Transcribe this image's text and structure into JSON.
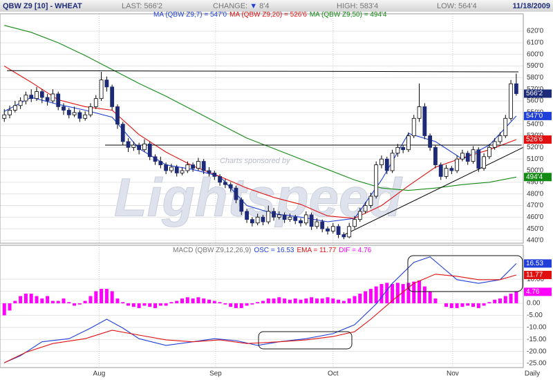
{
  "header": {
    "symbol": "QBW Z9 [10] - WHEAT",
    "date": "11/18/2009",
    "stats": [
      {
        "label": "LAST:",
        "value": "566'2"
      },
      {
        "label": "CHANGE:",
        "arrow": "▼",
        "value": "8'4"
      },
      {
        "label": "HIGH:",
        "value": "583'4"
      },
      {
        "label": "LOW:",
        "value": "564'4"
      }
    ]
  },
  "chart_data": [
    {
      "type": "candlestick",
      "ohlc": [
        [
          545,
          553,
          542,
          548
        ],
        [
          548,
          556,
          545,
          552
        ],
        [
          552,
          560,
          550,
          556
        ],
        [
          556,
          563,
          553,
          560
        ],
        [
          560,
          568,
          557,
          565
        ],
        [
          565,
          570,
          559,
          562
        ],
        [
          562,
          572,
          560,
          568
        ],
        [
          568,
          570,
          558,
          563
        ],
        [
          563,
          566,
          556,
          560
        ],
        [
          560,
          570,
          558,
          566
        ],
        [
          566,
          568,
          552,
          555
        ],
        [
          555,
          558,
          548,
          552
        ],
        [
          552,
          554,
          545,
          548
        ],
        [
          548,
          555,
          546,
          550
        ],
        [
          550,
          552,
          542,
          545
        ],
        [
          545,
          551,
          543,
          548
        ],
        [
          548,
          558,
          546,
          555
        ],
        [
          555,
          565,
          553,
          562
        ],
        [
          562,
          585,
          560,
          578
        ],
        [
          578,
          581,
          568,
          572
        ],
        [
          572,
          574,
          552,
          555
        ],
        [
          555,
          557,
          536,
          540
        ],
        [
          540,
          542,
          522,
          525
        ],
        [
          525,
          528,
          516,
          520
        ],
        [
          520,
          525,
          517,
          522
        ],
        [
          522,
          524,
          514,
          518
        ],
        [
          518,
          527,
          516,
          523
        ],
        [
          523,
          525,
          509,
          512
        ],
        [
          512,
          514,
          505,
          508
        ],
        [
          508,
          512,
          502,
          505
        ],
        [
          505,
          507,
          497,
          500
        ],
        [
          500,
          506,
          498,
          503
        ],
        [
          503,
          505,
          495,
          498
        ],
        [
          498,
          503,
          496,
          500
        ],
        [
          500,
          508,
          498,
          505
        ],
        [
          505,
          507,
          499,
          502
        ],
        [
          502,
          511,
          500,
          508
        ],
        [
          508,
          510,
          497,
          500
        ],
        [
          500,
          503,
          495,
          498
        ],
        [
          498,
          500,
          492,
          495
        ],
        [
          495,
          497,
          487,
          490
        ],
        [
          490,
          493,
          485,
          488
        ],
        [
          488,
          490,
          482,
          485
        ],
        [
          485,
          487,
          472,
          475
        ],
        [
          475,
          477,
          462,
          465
        ],
        [
          465,
          467,
          455,
          458
        ],
        [
          458,
          460,
          452,
          455
        ],
        [
          455,
          463,
          453,
          460
        ],
        [
          460,
          462,
          453,
          456
        ],
        [
          456,
          470,
          454,
          465
        ],
        [
          465,
          468,
          457,
          460
        ],
        [
          460,
          465,
          458,
          462
        ],
        [
          462,
          464,
          455,
          458
        ],
        [
          458,
          463,
          456,
          460
        ],
        [
          460,
          462,
          454,
          457
        ],
        [
          457,
          459,
          452,
          455
        ],
        [
          455,
          465,
          453,
          462
        ],
        [
          462,
          464,
          449,
          452
        ],
        [
          452,
          459,
          450,
          456
        ],
        [
          456,
          458,
          447,
          450
        ],
        [
          450,
          452,
          445,
          448
        ],
        [
          448,
          455,
          446,
          452
        ],
        [
          452,
          454,
          442,
          445
        ],
        [
          445,
          447,
          441,
          443
        ],
        [
          443,
          455,
          442,
          452
        ],
        [
          452,
          461,
          450,
          458
        ],
        [
          458,
          468,
          456,
          465
        ],
        [
          465,
          473,
          463,
          470
        ],
        [
          470,
          481,
          468,
          478
        ],
        [
          478,
          508,
          476,
          505
        ],
        [
          505,
          513,
          502,
          510
        ],
        [
          510,
          512,
          497,
          500
        ],
        [
          500,
          518,
          498,
          515
        ],
        [
          515,
          523,
          512,
          520
        ],
        [
          520,
          522,
          515,
          518
        ],
        [
          518,
          533,
          516,
          530
        ],
        [
          530,
          548,
          528,
          545
        ],
        [
          545,
          575,
          542,
          555
        ],
        [
          555,
          558,
          527,
          530
        ],
        [
          530,
          532,
          517,
          520
        ],
        [
          520,
          522,
          502,
          505
        ],
        [
          505,
          507,
          492,
          495
        ],
        [
          495,
          505,
          493,
          502
        ],
        [
          502,
          504,
          497,
          500
        ],
        [
          500,
          513,
          498,
          510
        ],
        [
          510,
          518,
          508,
          515
        ],
        [
          515,
          517,
          505,
          508
        ],
        [
          508,
          521,
          506,
          518
        ],
        [
          518,
          520,
          499,
          502
        ],
        [
          502,
          515,
          500,
          512
        ],
        [
          512,
          523,
          510,
          520
        ],
        [
          520,
          528,
          518,
          525
        ],
        [
          525,
          533,
          523,
          530
        ],
        [
          530,
          548,
          528,
          545
        ],
        [
          545,
          578,
          543,
          574.75
        ],
        [
          574.75,
          583.5,
          564.5,
          566.25
        ]
      ],
      "up_color": "#ffffff",
      "down_color": "#1c2a78",
      "last": {
        "value": 566.25,
        "label": "566'2",
        "color": "#1c2a78"
      },
      "xlim": [
        -0.8,
        96.3
      ],
      "ylim": [
        437.6,
        634.9
      ],
      "yticks": [
        {
          "value": 440,
          "label": "440'0"
        },
        {
          "value": 450,
          "label": "450'0"
        },
        {
          "value": 460,
          "label": "460'0"
        },
        {
          "value": 470,
          "label": "470'0"
        },
        {
          "value": 480,
          "label": "480'0"
        },
        {
          "value": 490,
          "label": "490'0"
        },
        {
          "value": 500,
          "label": "500'0"
        },
        {
          "value": 510,
          "label": "510'0"
        },
        {
          "value": 520,
          "label": "520'0"
        },
        {
          "value": 530,
          "label": "530'0"
        },
        {
          "value": 540,
          "label": "540'0"
        },
        {
          "value": 550,
          "label": "550'0"
        },
        {
          "value": 560,
          "label": "560'0"
        },
        {
          "value": 570,
          "label": "570'0"
        },
        {
          "value": 580,
          "label": "580'0"
        },
        {
          "value": 590,
          "label": "590'0"
        },
        {
          "value": 600,
          "label": "600'0"
        },
        {
          "value": 610,
          "label": "610'0"
        },
        {
          "value": 620,
          "label": "620'0"
        }
      ],
      "grid": true,
      "series": [
        {
          "name": "MA (QBW Z9,7) = 547'0",
          "color": "#1f3fd8",
          "tag": "547'0",
          "x": [
            0,
            5,
            10,
            15,
            20,
            25,
            30,
            35,
            40,
            45,
            50,
            55,
            60,
            65,
            70,
            75,
            80,
            85,
            90,
            95
          ],
          "values": [
            551,
            563,
            557,
            552,
            546,
            519,
            505,
            501,
            495,
            470,
            463,
            460,
            456,
            459,
            492,
            532,
            525,
            510,
            522,
            547
          ]
        },
        {
          "name": "MA (QBW Z9,20) = 526'6",
          "color": "#e01010",
          "tag": "526'6",
          "x": [
            0,
            5,
            10,
            15,
            20,
            25,
            30,
            35,
            40,
            45,
            50,
            55,
            60,
            65,
            70,
            75,
            80,
            85,
            90,
            95
          ],
          "values": [
            590,
            576,
            561,
            555,
            552,
            531,
            516,
            504,
            495,
            485,
            477,
            471,
            461,
            459,
            470,
            487,
            503,
            511,
            518,
            526.75
          ]
        },
        {
          "name": "MA (QBW Z9,50) = 494'4",
          "color": "#138a13",
          "tag": "494'4",
          "x": [
            0,
            5,
            10,
            15,
            20,
            25,
            30,
            35,
            40,
            45,
            50,
            55,
            60,
            65,
            70,
            75,
            80,
            85,
            90,
            95
          ],
          "values": [
            625,
            619,
            610,
            599,
            587,
            575,
            564,
            552,
            540,
            528,
            519,
            510,
            501,
            492,
            485,
            483,
            485,
            488,
            490,
            494.5
          ]
        }
      ],
      "trendlines": [
        {
          "x": [
            0.5,
            95.4
          ],
          "values": [
            586,
            585
          ]
        },
        {
          "x": [
            18.7,
            96
          ],
          "values": [
            522,
            522
          ]
        },
        {
          "x": [
            62.7,
            96.3
          ],
          "values": [
            444,
            520
          ]
        }
      ],
      "watermark": {
        "sponsor": "Charts sponsored by",
        "brand": "Lightspeed"
      }
    },
    {
      "type": "macd",
      "title": "MACD (QBW Z9,12,26,9)",
      "bars": {
        "name": "DIF = 4.76",
        "color": "#ff00ff",
        "tag": "4.76",
        "values": [
          -5,
          -3,
          1,
          3,
          4,
          4,
          3,
          2,
          3,
          1,
          1,
          2,
          0.5,
          -1,
          -0.5,
          1,
          3,
          5,
          6,
          6,
          5,
          2,
          0.5,
          -1,
          -1.5,
          -2,
          -1,
          -1.5,
          -2,
          -1,
          -1,
          0.5,
          1,
          2,
          2.5,
          2,
          2.5,
          2,
          1.5,
          1,
          0.5,
          -0.5,
          -1.5,
          -2,
          -2,
          -1,
          -0.5,
          0.5,
          1,
          2,
          2,
          2.5,
          2,
          1.5,
          2,
          1.5,
          2,
          2.5,
          2,
          2,
          2.5,
          2,
          1.5,
          1,
          2,
          3,
          4,
          5,
          6,
          7,
          8,
          8.5,
          8,
          8.5,
          8,
          8.5,
          9,
          9.5,
          7,
          5,
          2,
          0,
          -1.5,
          -2,
          -2,
          -1.5,
          -1,
          -1.5,
          -2,
          -1,
          0.5,
          1.5,
          2,
          3,
          4,
          4.76
        ]
      },
      "series": [
        {
          "name": "OSC = 16.53",
          "color": "#1f3fd8",
          "tag": "16.53",
          "x": [
            0,
            3,
            7,
            12,
            16,
            19,
            22,
            25,
            30,
            35,
            39,
            43,
            47,
            51,
            56,
            61,
            65,
            69,
            72,
            76,
            79,
            81,
            84,
            88,
            92,
            95
          ],
          "values": [
            -24.7,
            -21.8,
            -16,
            -14.7,
            -10.3,
            -6.6,
            -10.3,
            -14.7,
            -17.5,
            -16,
            -14.7,
            -15.5,
            -17.5,
            -16,
            -14.7,
            -12.6,
            -8.9,
            -0.3,
            8.3,
            17,
            19.3,
            15.5,
            9.8,
            8.3,
            9.8,
            16.53
          ]
        },
        {
          "name": "EMA = 11.77",
          "color": "#e01010",
          "tag": "11.77",
          "x": [
            0,
            4,
            9,
            15,
            20,
            25,
            30,
            35,
            40,
            45,
            51,
            56,
            61,
            65,
            68,
            72,
            76,
            80,
            84,
            88,
            92,
            95
          ],
          "values": [
            -24.7,
            -20.4,
            -16.7,
            -14.7,
            -11.2,
            -13.2,
            -15.2,
            -16,
            -15.2,
            -16.7,
            -16,
            -15.2,
            -13.8,
            -11.8,
            -6.6,
            1.1,
            8.3,
            12.1,
            11.2,
            9.8,
            9.8,
            11.77
          ]
        }
      ],
      "xlim": [
        -0.8,
        96.3
      ],
      "ylim": [
        -26.7,
        24.1
      ],
      "xticks": [
        {
          "value": 17.6,
          "label": "Aug"
        },
        {
          "value": 39.2,
          "label": "Sep"
        },
        {
          "value": 61.0,
          "label": "Oct"
        },
        {
          "value": 83.2,
          "label": "Nov"
        }
      ],
      "period": "Daily",
      "yticks": [
        {
          "value": 10,
          "label": "10.00"
        },
        {
          "value": 5,
          "label": "5.00"
        },
        {
          "value": 0,
          "label": "0.00"
        },
        {
          "value": -5,
          "label": "-5.00"
        },
        {
          "value": -10,
          "label": "-10.00"
        },
        {
          "value": -15,
          "label": "-15.00"
        },
        {
          "value": -20,
          "label": "-20.00"
        },
        {
          "value": -25,
          "label": "-25.00"
        }
      ],
      "grid": true
    }
  ]
}
